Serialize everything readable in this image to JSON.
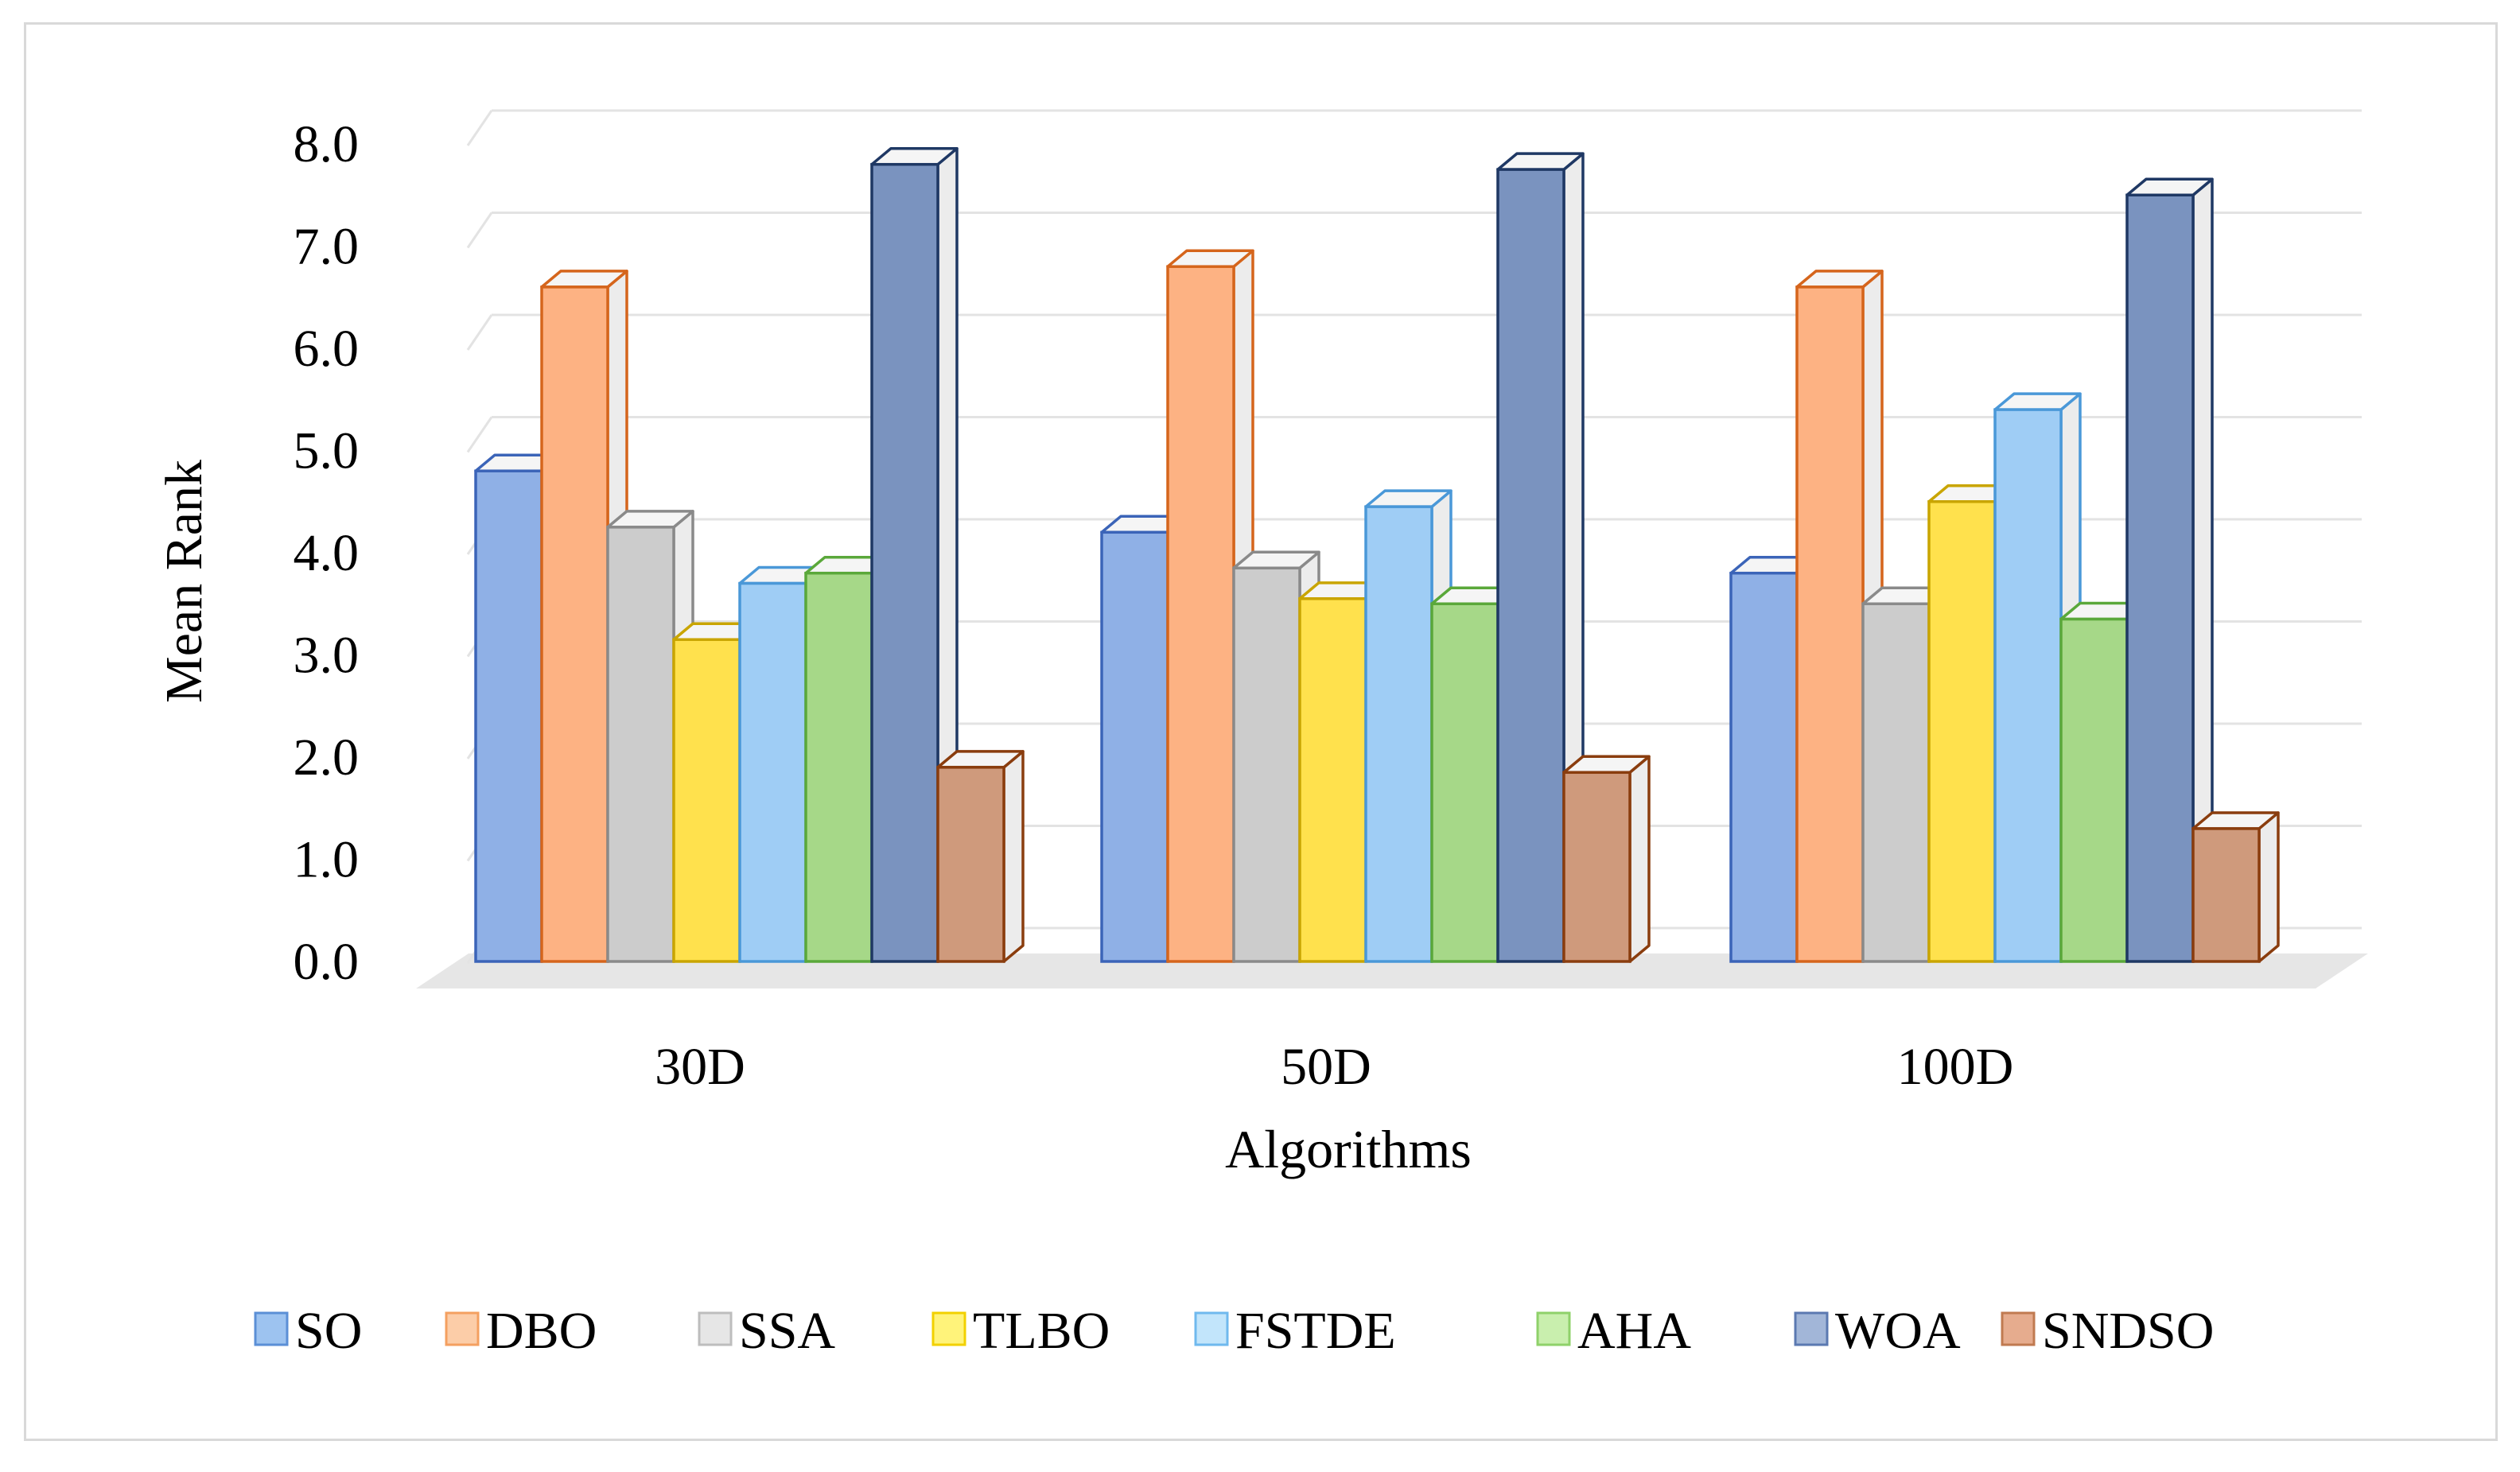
{
  "chart_data": {
    "type": "bar",
    "title": "",
    "xlabel": "Algorithms",
    "ylabel": "Mean Rank",
    "ylim": [
      0,
      8
    ],
    "yticks": [
      "0.0",
      "1.0",
      "2.0",
      "3.0",
      "4.0",
      "5.0",
      "6.0",
      "7.0",
      "8.0"
    ],
    "grid": true,
    "legend_position": "bottom",
    "categories": [
      "30D",
      "50D",
      "100D"
    ],
    "series": [
      {
        "name": "SO",
        "values": [
          4.8,
          4.2,
          3.8
        ],
        "color": "#8fb0e6",
        "edge": "#3b64b8",
        "legend_color": "#9dc3f0",
        "legend_edge": "#5b8fd6"
      },
      {
        "name": "DBO",
        "values": [
          6.6,
          6.8,
          6.6
        ],
        "color": "#fdb283",
        "edge": "#d5651c",
        "legend_color": "#fccda8",
        "legend_edge": "#f4a060"
      },
      {
        "name": "SSA",
        "values": [
          4.25,
          3.85,
          3.5
        ],
        "color": "#cccccc",
        "edge": "#8a8a8a",
        "legend_color": "#e6e6e6",
        "legend_edge": "#bdbdbd"
      },
      {
        "name": "TLBO",
        "values": [
          3.15,
          3.55,
          4.5
        ],
        "color": "#ffe14d",
        "edge": "#c9a500",
        "legend_color": "#fff37a",
        "legend_edge": "#f2d000"
      },
      {
        "name": "FSTDE",
        "values": [
          3.7,
          4.45,
          5.4
        ],
        "color": "#9fcdf5",
        "edge": "#4a98d8",
        "legend_color": "#c2e5fb",
        "legend_edge": "#6fb9ee"
      },
      {
        "name": "AHA",
        "values": [
          3.8,
          3.5,
          3.35
        ],
        "color": "#a6d888",
        "edge": "#5aa83a",
        "legend_color": "#c9efae",
        "legend_edge": "#8fd16a"
      },
      {
        "name": "WOA",
        "values": [
          7.8,
          7.75,
          7.5
        ],
        "color": "#7a93bf",
        "edge": "#1f3864",
        "legend_color": "#a2b6d8",
        "legend_edge": "#5b79b1"
      },
      {
        "name": "SNDSO",
        "values": [
          1.9,
          1.85,
          1.3
        ],
        "color": "#cf9a7c",
        "edge": "#8a3d0e",
        "legend_color": "#e6ac8e",
        "legend_edge": "#c07a50"
      }
    ]
  }
}
